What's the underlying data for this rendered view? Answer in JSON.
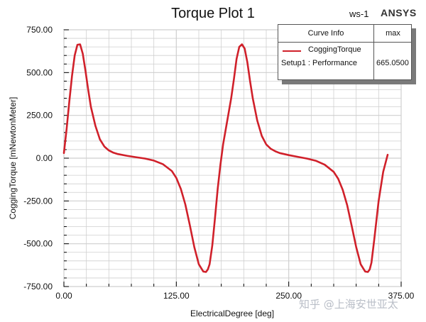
{
  "header": {
    "workspace_label": "ws-1",
    "brand": "ANSYS"
  },
  "legend": {
    "col_curve": "Curve Info",
    "col_max": "max",
    "curve_name": "CoggingTorque",
    "setup_label": "Setup1 : Performance",
    "max_value": "665.0500"
  },
  "watermark": "知乎 @上海安世亚太",
  "colors": {
    "curve": "#d0202a",
    "grid": "#cfcfcf",
    "axis": "#000000"
  },
  "chart_data": {
    "type": "line",
    "title": "Torque Plot 1",
    "xlabel": "ElectricalDegree [deg]",
    "ylabel": "CoggingTorque [mNewtonMeter]",
    "xlim": [
      0,
      375
    ],
    "ylim": [
      -750,
      750
    ],
    "x_ticks": [
      "0.00",
      "125.00",
      "250.00",
      "375.00"
    ],
    "y_ticks": [
      "750.00",
      "500.00",
      "250.00",
      "0.00",
      "-250.00",
      "-500.00",
      "-750.00"
    ],
    "grid": true,
    "legend_position": "top-right",
    "series": [
      {
        "name": "CoggingTorque",
        "x": [
          0,
          3,
          6,
          9,
          12,
          15,
          18,
          21,
          24,
          27,
          30,
          35,
          40,
          45,
          50,
          55,
          60,
          70,
          80,
          90,
          100,
          110,
          120,
          125,
          130,
          135,
          140,
          145,
          150,
          155,
          158,
          160,
          162,
          165,
          168,
          171,
          174,
          177,
          180,
          183,
          186,
          189,
          192,
          195,
          198,
          201,
          204,
          207,
          210,
          215,
          220,
          225,
          230,
          235,
          240,
          250,
          260,
          270,
          280,
          290,
          300,
          305,
          310,
          315,
          320,
          325,
          330,
          335,
          338,
          340,
          342,
          345,
          350,
          355,
          360
        ],
        "y": [
          30,
          170,
          330,
          480,
          600,
          662,
          665,
          610,
          510,
          400,
          300,
          190,
          110,
          68,
          45,
          32,
          24,
          14,
          6,
          -2,
          -14,
          -35,
          -75,
          -115,
          -180,
          -270,
          -390,
          -520,
          -620,
          -662,
          -665,
          -650,
          -620,
          -510,
          -350,
          -180,
          -40,
          80,
          170,
          260,
          350,
          460,
          580,
          650,
          665,
          640,
          560,
          450,
          350,
          220,
          130,
          80,
          55,
          40,
          30,
          18,
          8,
          -2,
          -15,
          -38,
          -80,
          -120,
          -185,
          -275,
          -395,
          -520,
          -620,
          -662,
          -665,
          -650,
          -610,
          -480,
          -250,
          -80,
          20
        ]
      }
    ]
  }
}
